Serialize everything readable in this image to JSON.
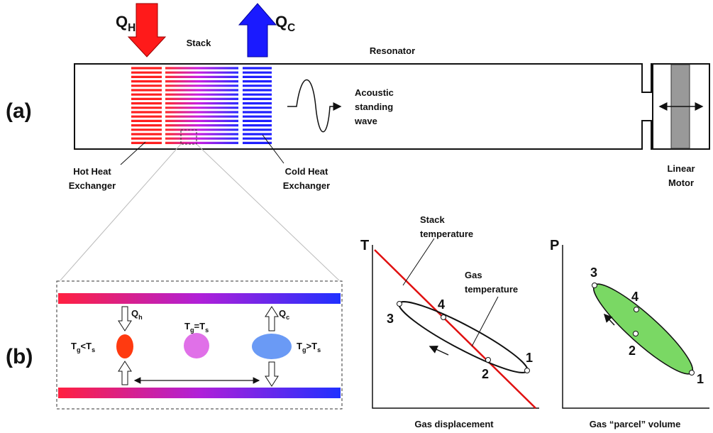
{
  "panel_a": {
    "label": "(a)",
    "heat_in": {
      "symbol": "Q",
      "subscript": "H"
    },
    "heat_out": {
      "symbol": "Q",
      "subscript": "C"
    },
    "stack": "Stack",
    "resonator": "Resonator",
    "wave": [
      "Acoustic",
      "standing",
      "wave"
    ],
    "hot_exchanger": [
      "Hot Heat",
      "Exchanger"
    ],
    "cold_exchanger": [
      "Cold Heat",
      "Exchanger"
    ],
    "motor": [
      "Linear",
      "Motor"
    ]
  },
  "panel_b": {
    "label": "(b)",
    "q_h": {
      "symbol": "Q",
      "subscript": "h"
    },
    "q_c": {
      "symbol": "Q",
      "subscript": "c"
    },
    "left_condition": [
      "T",
      "g",
      "<T",
      "s"
    ],
    "middle_condition": [
      "T",
      "g",
      "=T",
      "s"
    ],
    "right_condition": [
      "T",
      "g",
      ">T",
      "s"
    ]
  },
  "t_plot": {
    "y_axis": "T",
    "x_axis": "Gas displacement",
    "stack_temperature": [
      "Stack",
      "temperature"
    ],
    "gas_temperature": [
      "Gas",
      "temperature"
    ],
    "points": [
      "1",
      "2",
      "3",
      "4"
    ]
  },
  "p_plot": {
    "y_axis": "P",
    "x_axis": "Gas “parcel” volume",
    "points": [
      "1",
      "2",
      "3",
      "4"
    ]
  }
}
